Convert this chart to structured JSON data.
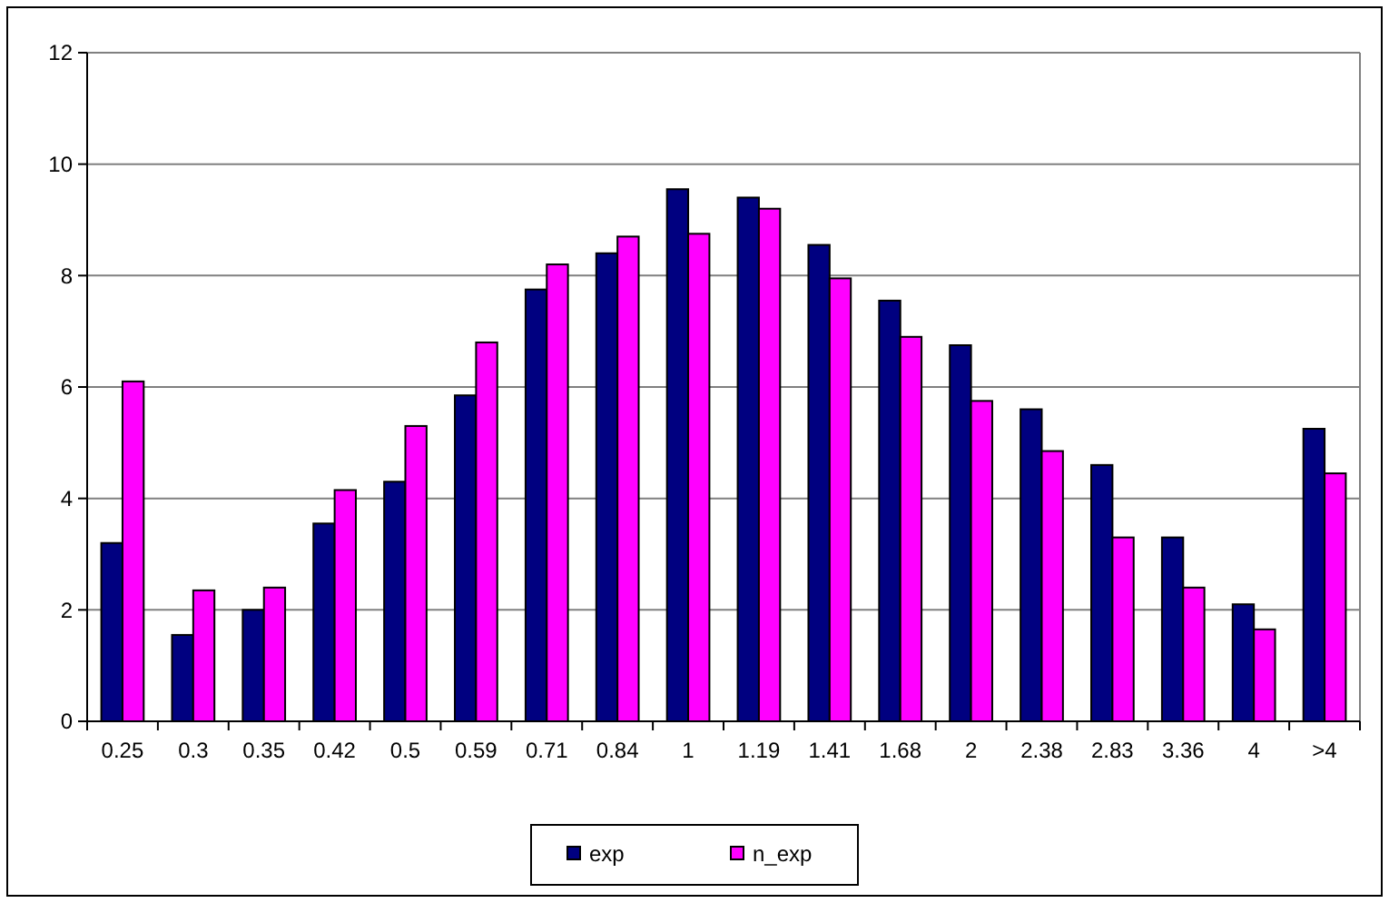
{
  "chart_data": {
    "type": "bar",
    "categories": [
      "0.25",
      "0.3",
      "0.35",
      "0.42",
      "0.5",
      "0.59",
      "0.71",
      "0.84",
      "1",
      "1.19",
      "1.41",
      "1.68",
      "2",
      "2.38",
      "2.83",
      "3.36",
      "4",
      ">4"
    ],
    "series": [
      {
        "name": "exp",
        "color": "#000080",
        "values": [
          3.2,
          1.55,
          2.0,
          3.55,
          4.3,
          5.85,
          7.75,
          8.4,
          9.55,
          9.4,
          8.55,
          7.55,
          6.75,
          5.6,
          4.6,
          3.3,
          2.1,
          5.25
        ]
      },
      {
        "name": "n_exp",
        "color": "#ff00ff",
        "values": [
          6.1,
          2.35,
          2.4,
          4.15,
          5.3,
          6.8,
          8.2,
          8.7,
          8.75,
          9.2,
          7.95,
          6.9,
          5.75,
          4.85,
          3.3,
          2.4,
          1.65,
          4.45
        ]
      }
    ],
    "ylim": [
      0,
      12
    ],
    "yticks": [
      0,
      2,
      4,
      6,
      8,
      10,
      12
    ],
    "grid": "y",
    "legend": "bottom"
  }
}
